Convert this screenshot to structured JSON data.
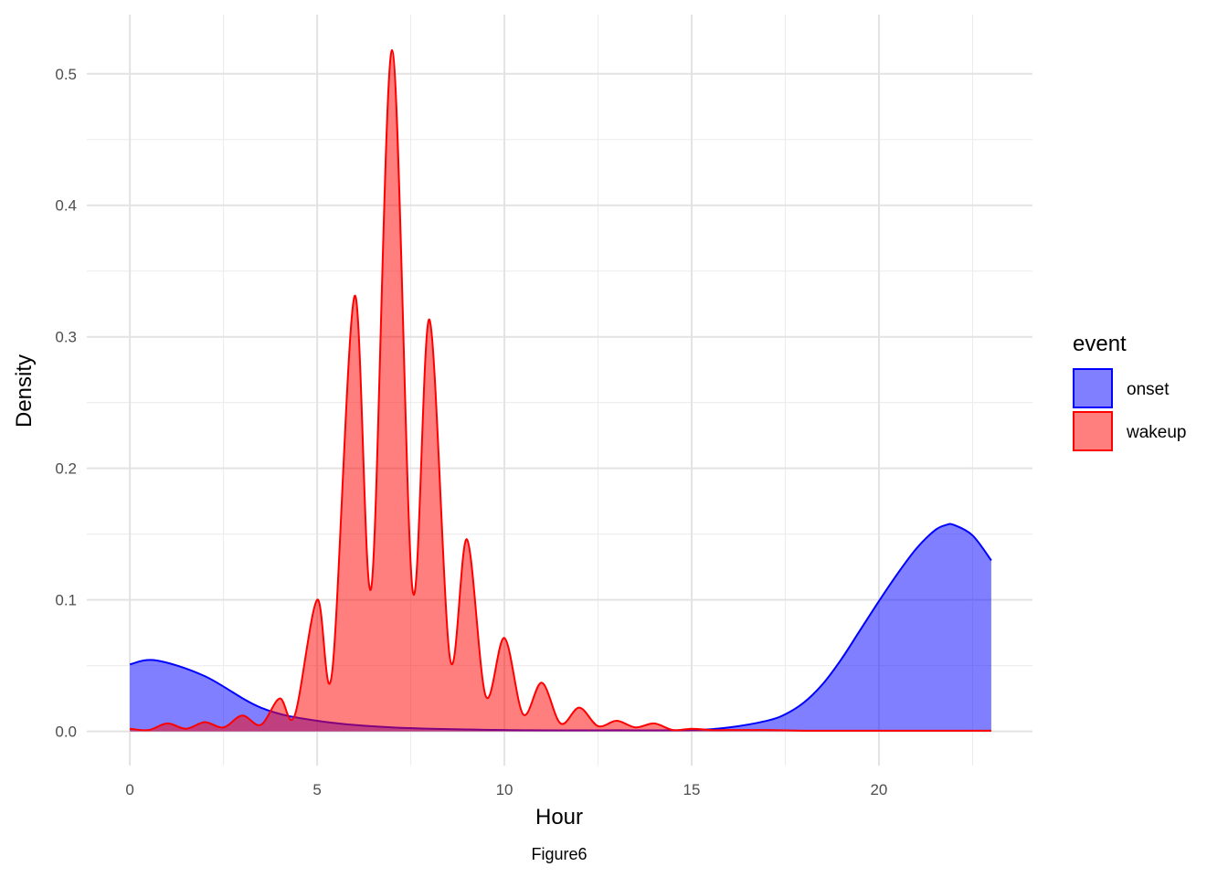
{
  "chart_data": {
    "type": "area",
    "subtype": "density",
    "xlabel": "Hour",
    "ylabel": "Density",
    "caption": "Figure6",
    "xlim": [
      -1.15,
      24.1
    ],
    "ylim": [
      -0.026,
      0.545
    ],
    "x_ticks": [
      0,
      5,
      10,
      15,
      20
    ],
    "y_ticks": [
      0.0,
      0.1,
      0.2,
      0.3,
      0.4,
      0.5
    ],
    "grid": true,
    "legend": {
      "title": "event",
      "position": "right"
    },
    "series": [
      {
        "name": "onset",
        "color": "#0000ff",
        "fill": "#8080ff",
        "points": [
          [
            0,
            0.051
          ],
          [
            0.7,
            0.054
          ],
          [
            2,
            0.042
          ],
          [
            3.5,
            0.018
          ],
          [
            5,
            0.008
          ],
          [
            7,
            0.003
          ],
          [
            10,
            0.001
          ],
          [
            13,
            0.0008
          ],
          [
            15,
            0.001
          ],
          [
            16,
            0.003
          ],
          [
            17,
            0.008
          ],
          [
            17.5,
            0.013
          ],
          [
            18,
            0.022
          ],
          [
            18.5,
            0.036
          ],
          [
            19,
            0.055
          ],
          [
            19.5,
            0.077
          ],
          [
            20,
            0.099
          ],
          [
            20.5,
            0.12
          ],
          [
            21,
            0.139
          ],
          [
            21.5,
            0.153
          ],
          [
            21.8,
            0.157
          ],
          [
            22,
            0.157
          ],
          [
            22.5,
            0.149
          ],
          [
            23,
            0.13
          ]
        ]
      },
      {
        "name": "wakeup",
        "color": "#ff0000",
        "fill": "#ff8080",
        "points": [
          [
            0,
            0.002
          ],
          [
            0.5,
            0.001
          ],
          [
            1,
            0.006
          ],
          [
            1.5,
            0.002
          ],
          [
            2,
            0.007
          ],
          [
            2.5,
            0.003
          ],
          [
            3,
            0.012
          ],
          [
            3.5,
            0.005
          ],
          [
            4,
            0.025
          ],
          [
            4.4,
            0.012
          ],
          [
            5,
            0.1
          ],
          [
            5.4,
            0.045
          ],
          [
            6,
            0.331
          ],
          [
            6.45,
            0.11
          ],
          [
            7,
            0.518
          ],
          [
            7.55,
            0.107
          ],
          [
            8,
            0.313
          ],
          [
            8.55,
            0.055
          ],
          [
            9,
            0.146
          ],
          [
            9.5,
            0.027
          ],
          [
            10,
            0.071
          ],
          [
            10.5,
            0.013
          ],
          [
            11,
            0.037
          ],
          [
            11.5,
            0.006
          ],
          [
            12,
            0.018
          ],
          [
            12.5,
            0.004
          ],
          [
            13,
            0.008
          ],
          [
            13.5,
            0.003
          ],
          [
            14,
            0.006
          ],
          [
            14.5,
            0.001
          ],
          [
            15,
            0.002
          ],
          [
            15.5,
            0.001
          ],
          [
            16,
            0.001
          ],
          [
            17,
            0.001
          ],
          [
            18,
            0.0005
          ],
          [
            19,
            0.0005
          ],
          [
            20,
            0.0005
          ],
          [
            21,
            0.0005
          ],
          [
            22,
            0.0005
          ],
          [
            23,
            0.0005
          ]
        ]
      }
    ]
  }
}
